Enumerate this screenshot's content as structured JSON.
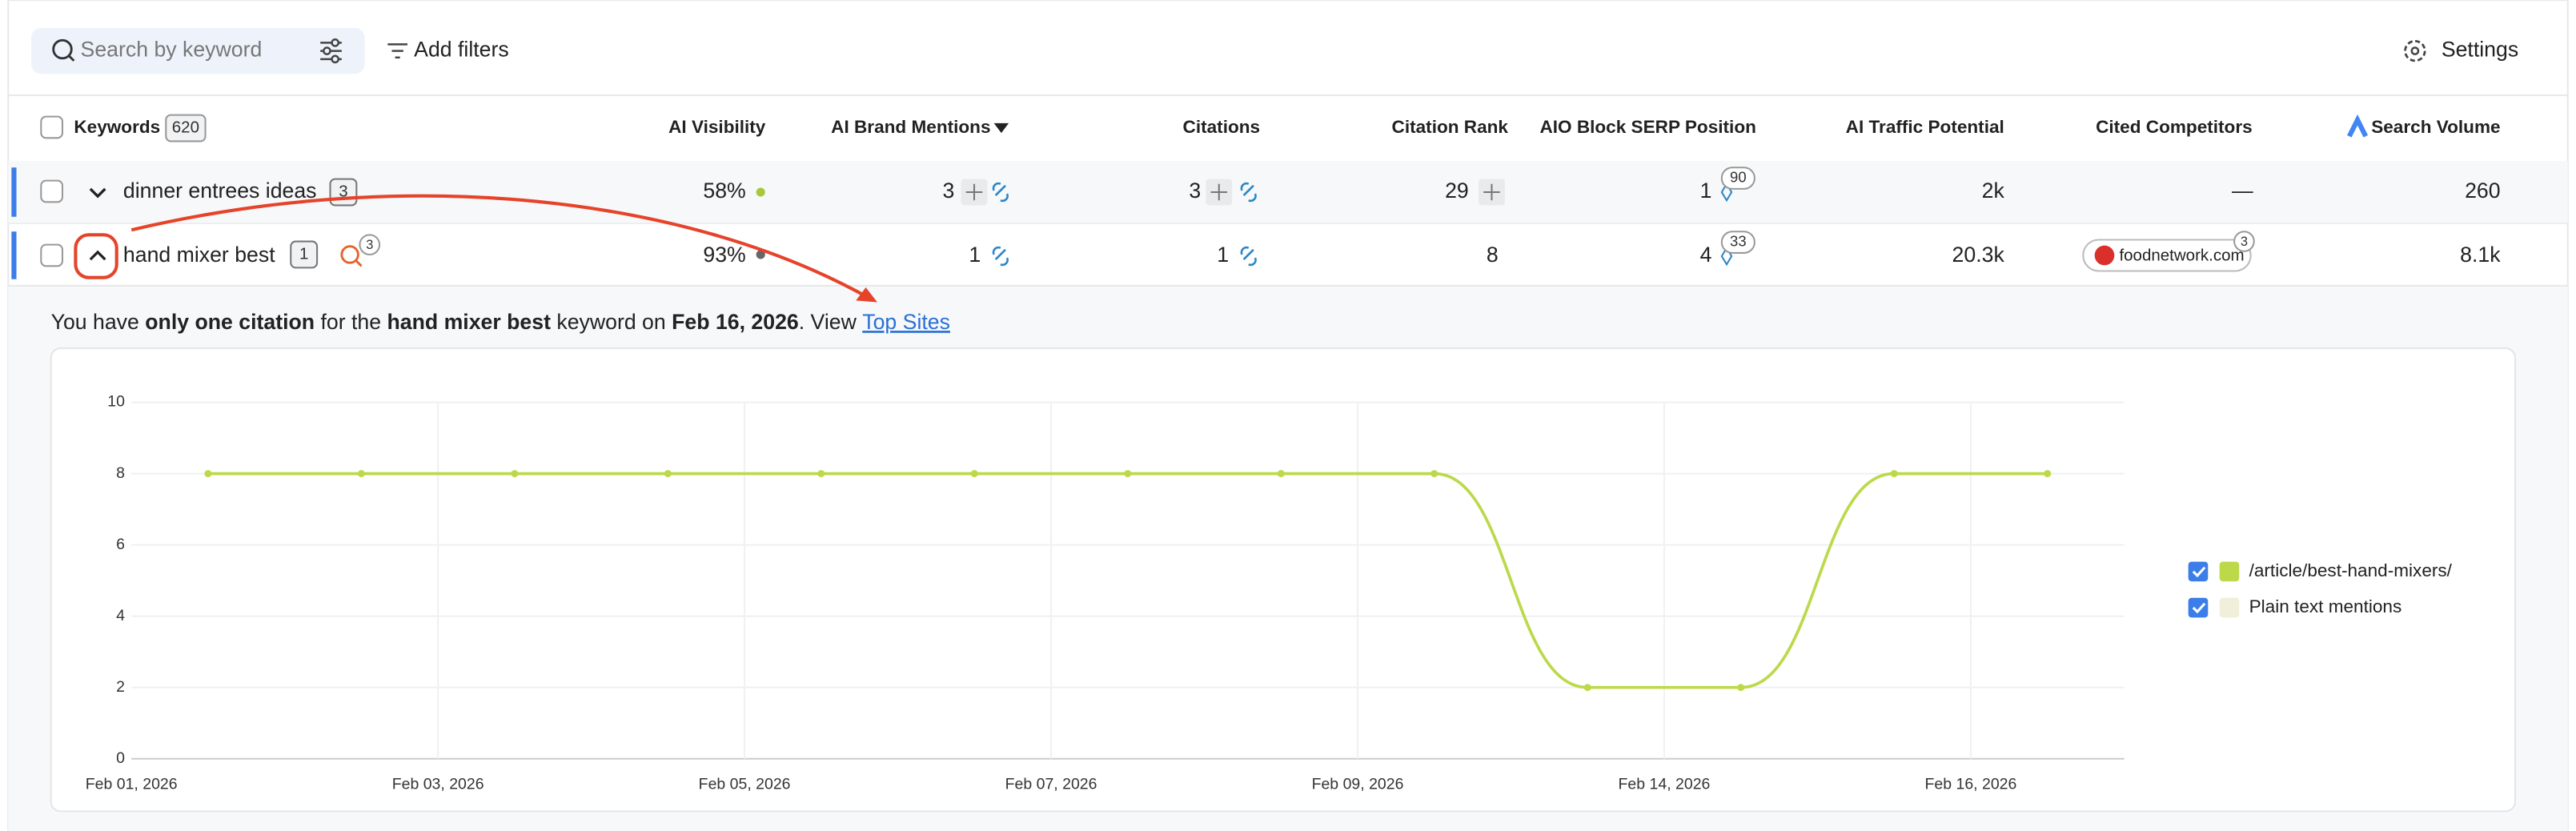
{
  "toolbar": {
    "search_placeholder": "Search by keyword",
    "add_filters": "Add filters",
    "settings": "Settings"
  },
  "table": {
    "columns": [
      "Keywords",
      "AI Visibility",
      "AI Brand Mentions",
      "Citations",
      "Citation Rank",
      "AIO Block SERP Position",
      "AI Traffic Potential",
      "Cited Competitors",
      "Search Volume"
    ],
    "keywords_count": "620",
    "rows": [
      {
        "keyword": "dinner entrees ideas",
        "count": "3",
        "ai_visibility": "58%",
        "brand_mentions": "3",
        "citations": "3",
        "citation_rank": "29",
        "aio_position": "1",
        "aio_badge": "90",
        "traffic": "2k",
        "competitors": "—",
        "volume": "260"
      },
      {
        "keyword": "hand mixer best",
        "count": "1",
        "mention_badge": "3",
        "ai_visibility": "93%",
        "brand_mentions": "1",
        "citations": "1",
        "citation_rank": "8",
        "aio_position": "4",
        "aio_badge": "33",
        "traffic": "20.3k",
        "competitors": "foodnetwork.com",
        "competitor_badge": "3",
        "volume": "8.1k"
      }
    ]
  },
  "message": [
    "You have ",
    "only one citation",
    " for the ",
    "hand mixer best",
    " keyword on ",
    "Feb 16, 2026",
    ". View ",
    "Top Sites"
  ],
  "chart_data": {
    "type": "line",
    "categories": [
      "Feb 01, 2026",
      null,
      "Feb 03, 2026",
      null,
      "Feb 05, 2026",
      null,
      "Feb 07, 2026",
      null,
      "Feb 09, 2026",
      null,
      "Feb 14, 2026",
      null,
      "Feb 16, 2026"
    ],
    "series": [
      {
        "name": "/article/best-hand-mixers/",
        "color": "#bcd94a",
        "values": [
          8,
          8,
          8,
          8,
          8,
          8,
          8,
          8,
          8,
          2,
          2,
          8,
          8
        ]
      },
      {
        "name": "Plain text mentions",
        "color": "#f1efd9",
        "values": [
          null,
          null,
          null,
          null,
          null,
          null,
          null,
          null,
          null,
          null,
          null,
          null,
          null
        ]
      }
    ],
    "ylim": [
      0,
      10
    ],
    "yticks": [
      0,
      2,
      4,
      6,
      8,
      10
    ],
    "grid": true,
    "legend": "right"
  }
}
